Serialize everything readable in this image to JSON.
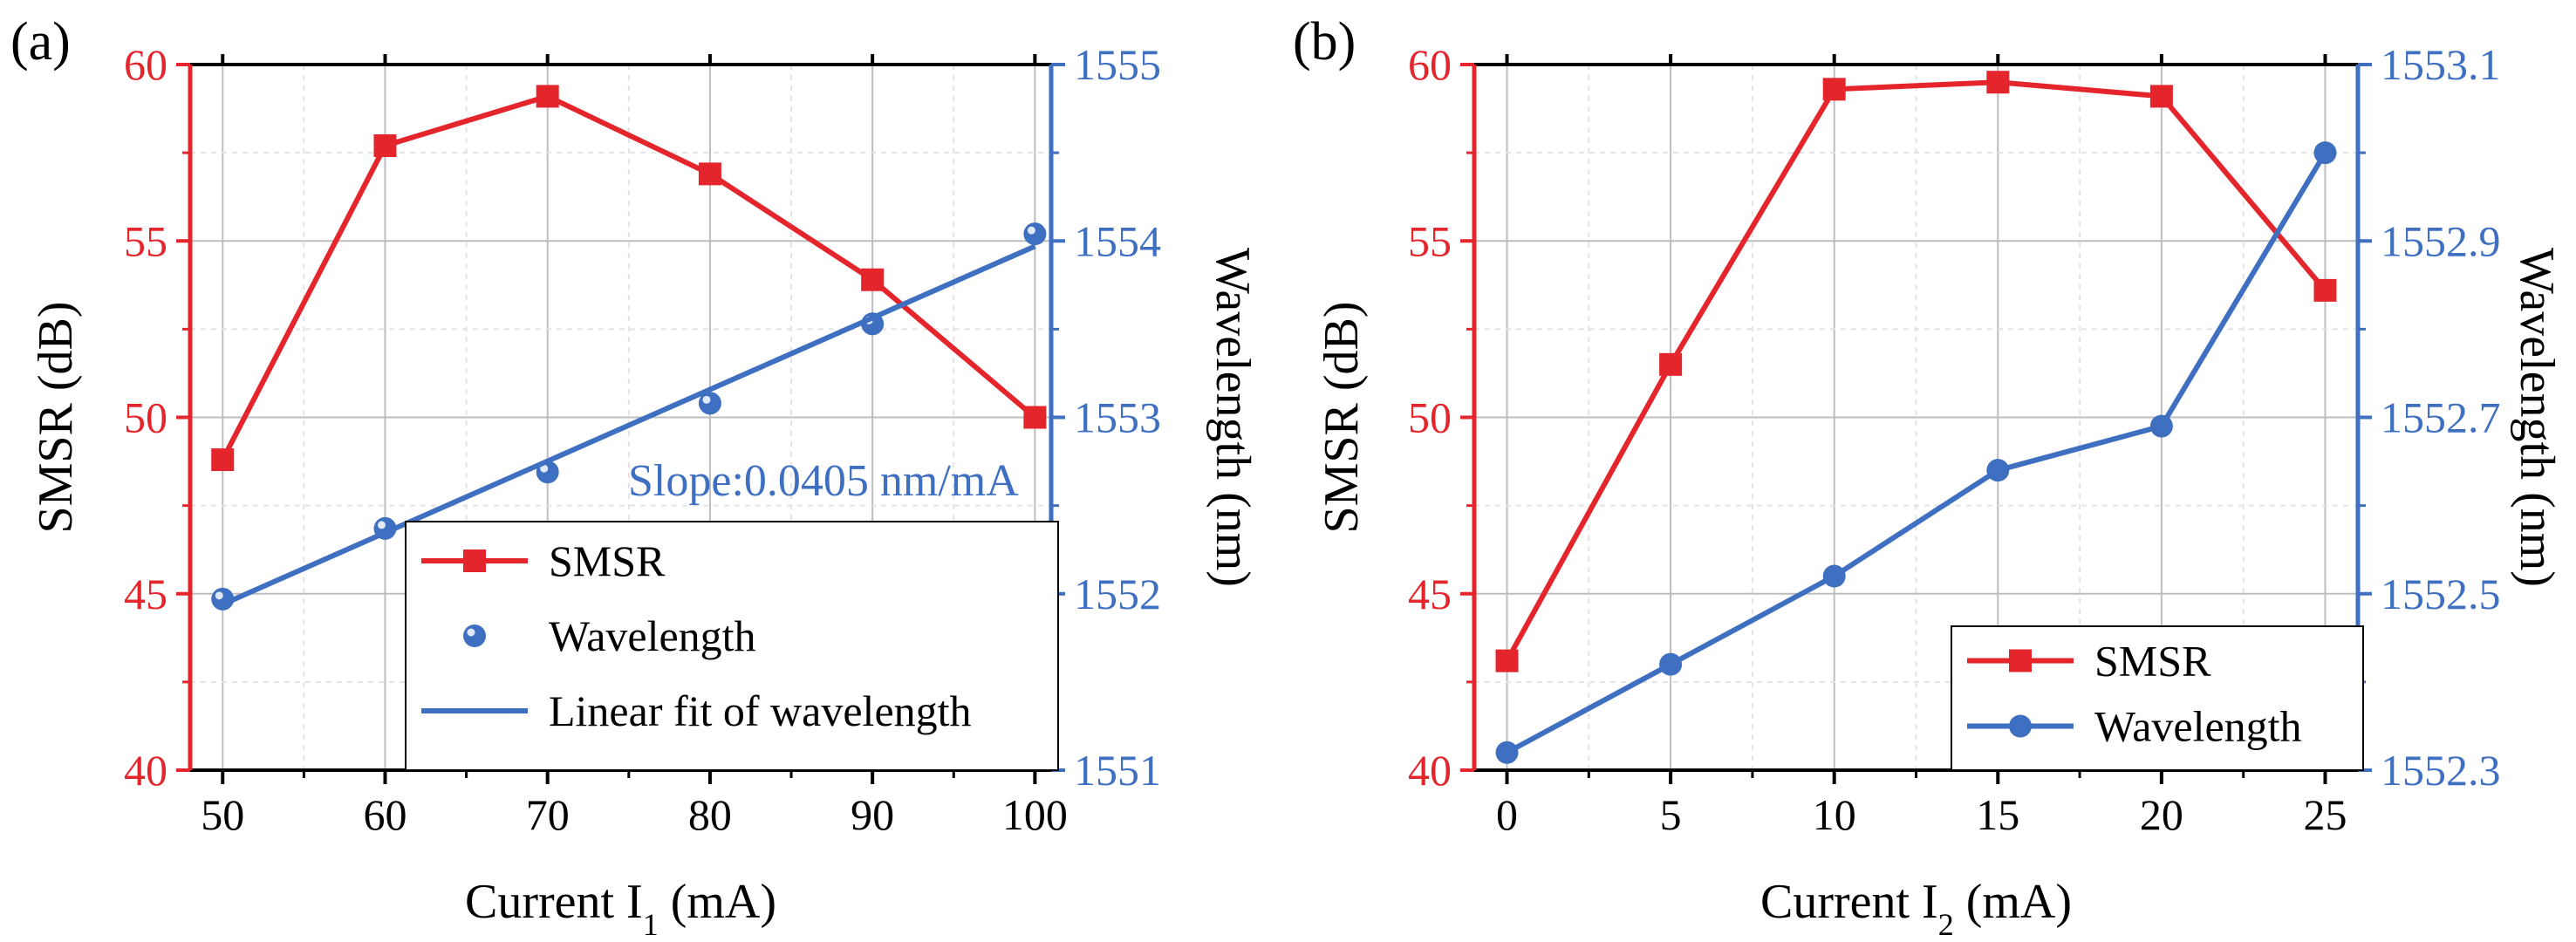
{
  "colors": {
    "smsr": "#e4262c",
    "wavelength": "#3e6fc1",
    "axis": "#000000",
    "grid": "#bdbdbd"
  },
  "chart_data": [
    {
      "type": "line",
      "panel_label": "(a)",
      "xlabel": "Current I",
      "xlabel_sub": "1",
      "xlabel_unit": " (mA)",
      "ylabel": "SMSR (dB)",
      "y2label": "Wavelength (nm)",
      "xlim": [
        48,
        101
      ],
      "ylim": [
        40,
        60
      ],
      "y2lim": [
        1551,
        1555
      ],
      "xticks": [
        50,
        60,
        70,
        80,
        90,
        100
      ],
      "yticks": [
        40,
        45,
        50,
        55,
        60
      ],
      "y2ticks": [
        1551,
        1552,
        1553,
        1554,
        1555
      ],
      "annotation": "Slope:0.0405 nm/mA",
      "legend_position": "bottom-right",
      "series": [
        {
          "name": "SMSR",
          "axis": "left",
          "marker": "square",
          "line": true,
          "x": [
            50,
            60,
            70,
            80,
            90,
            100
          ],
          "y": [
            48.8,
            57.7,
            59.1,
            56.9,
            53.9,
            50.0
          ]
        },
        {
          "name": "Wavelength",
          "axis": "right",
          "marker": "sphere",
          "line": false,
          "x": [
            50,
            60,
            70,
            80,
            90,
            100
          ],
          "y": [
            1551.97,
            1552.37,
            1552.69,
            1553.08,
            1553.53,
            1554.04
          ]
        },
        {
          "name": "Linear fit of wavelength",
          "axis": "right",
          "marker": "none",
          "line": true,
          "x": [
            50,
            100
          ],
          "y": [
            1551.94,
            1553.97
          ]
        }
      ]
    },
    {
      "type": "line",
      "panel_label": "(b)",
      "xlabel": "Current I",
      "xlabel_sub": "2",
      "xlabel_unit": " (mA)",
      "ylabel": "SMSR (dB)",
      "y2label": "Wavelength (nm)",
      "xlim": [
        -1,
        26
      ],
      "ylim": [
        40,
        60
      ],
      "y2lim": [
        1552.3,
        1553.1
      ],
      "xticks": [
        0,
        5,
        10,
        15,
        20,
        25
      ],
      "yticks": [
        40,
        45,
        50,
        55,
        60
      ],
      "y2ticks": [
        1552.3,
        1552.5,
        1552.7,
        1552.9,
        1553.1
      ],
      "legend_position": "bottom-right",
      "series": [
        {
          "name": "SMSR",
          "axis": "left",
          "marker": "square",
          "line": true,
          "x": [
            0,
            5,
            10,
            15,
            20,
            25
          ],
          "y": [
            43.1,
            51.5,
            59.3,
            59.5,
            59.1,
            53.6
          ]
        },
        {
          "name": "Wavelength",
          "axis": "right",
          "marker": "circle",
          "line": true,
          "x": [
            0,
            5,
            10,
            15,
            20,
            25
          ],
          "y": [
            1552.32,
            1552.42,
            1552.52,
            1552.64,
            1552.69,
            1553.0
          ]
        }
      ]
    }
  ]
}
